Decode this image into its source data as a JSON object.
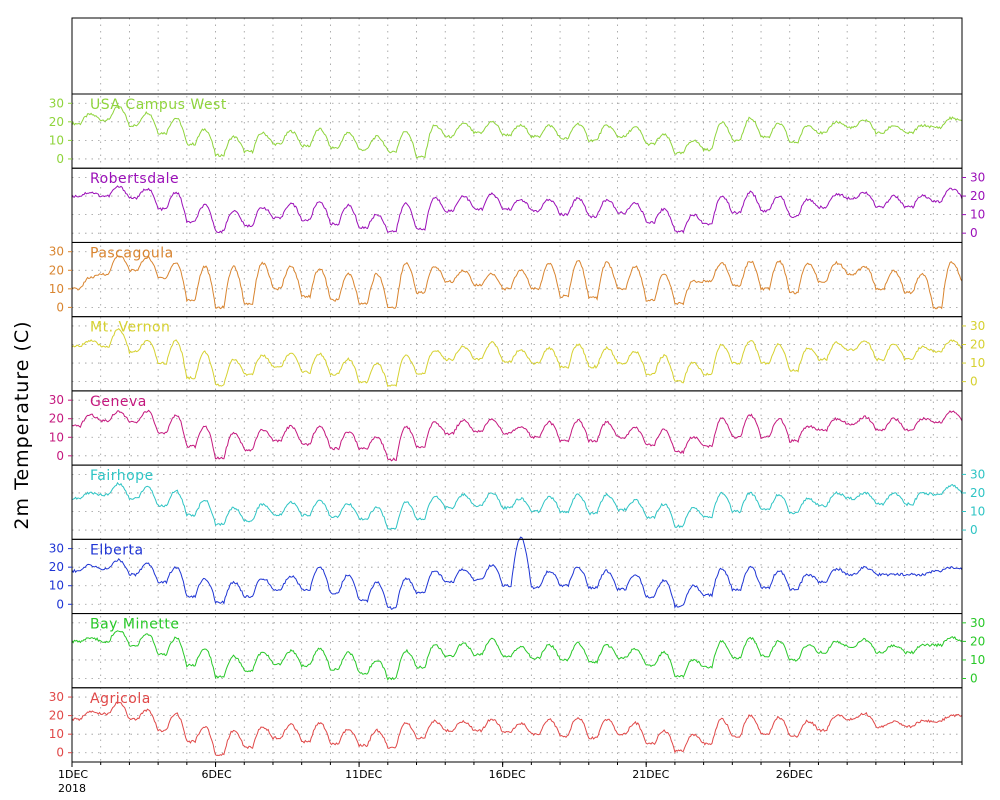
{
  "chart_data": {
    "type": "line",
    "ylabel": "2m Temperature (C)",
    "x_start_label": "1DEC",
    "x_year_label": "2018",
    "x_ticks": [
      {
        "day": 1,
        "label": "1DEC"
      },
      {
        "day": 6,
        "label": "6DEC"
      },
      {
        "day": 11,
        "label": "11DEC"
      },
      {
        "day": 16,
        "label": "16DEC"
      },
      {
        "day": 21,
        "label": "21DEC"
      },
      {
        "day": 26,
        "label": "26DEC"
      }
    ],
    "x_range_days": [
      1,
      32
    ],
    "y_ticks": [
      0,
      10,
      20,
      30
    ],
    "ylim": [
      -5,
      35
    ],
    "grid": true,
    "series": [
      {
        "name": "USA Campus West",
        "color": "#8fd43c",
        "axis_side": "left",
        "daily_max": [
          24,
          28,
          25,
          22,
          16,
          12,
          14,
          15,
          16,
          14,
          12,
          15,
          18,
          19,
          20,
          18,
          18,
          19,
          18,
          17,
          13,
          10,
          20,
          22,
          19,
          18,
          20,
          21,
          18,
          18,
          22,
          22
        ],
        "daily_min": [
          19,
          21,
          18,
          14,
          8,
          2,
          4,
          8,
          7,
          6,
          5,
          4,
          1,
          12,
          14,
          13,
          12,
          11,
          10,
          12,
          8,
          3,
          5,
          10,
          12,
          9,
          14,
          17,
          14,
          14,
          17,
          20
        ]
      },
      {
        "name": "Robertsdale",
        "color": "#9b10b8",
        "axis_side": "right",
        "daily_max": [
          22,
          25,
          24,
          22,
          15,
          12,
          14,
          16,
          17,
          15,
          10,
          16,
          19,
          20,
          21,
          18,
          18,
          19,
          18,
          16,
          13,
          10,
          20,
          22,
          20,
          18,
          21,
          22,
          20,
          20,
          24,
          22
        ],
        "daily_min": [
          20,
          20,
          19,
          13,
          6,
          1,
          4,
          8,
          7,
          5,
          3,
          1,
          2,
          12,
          13,
          13,
          12,
          10,
          9,
          11,
          6,
          1,
          5,
          11,
          12,
          9,
          14,
          19,
          14,
          14,
          17,
          19
        ]
      },
      {
        "name": "Pascagoula",
        "color": "#d98530",
        "axis_side": "left",
        "daily_max": [
          16,
          28,
          27,
          24,
          22,
          22,
          24,
          22,
          21,
          18,
          18,
          24,
          22,
          20,
          18,
          20,
          24,
          25,
          24,
          22,
          18,
          14,
          24,
          25,
          25,
          24,
          24,
          22,
          20,
          18,
          24,
          22
        ],
        "daily_min": [
          10,
          18,
          20,
          16,
          4,
          0,
          2,
          10,
          6,
          4,
          2,
          0,
          8,
          14,
          12,
          10,
          10,
          6,
          5,
          10,
          4,
          2,
          14,
          12,
          10,
          8,
          14,
          18,
          10,
          8,
          0,
          14
        ]
      },
      {
        "name": "Mt. Vernon",
        "color": "#d6d130",
        "axis_side": "right",
        "daily_max": [
          22,
          28,
          22,
          22,
          16,
          12,
          14,
          15,
          15,
          12,
          10,
          14,
          17,
          19,
          21,
          17,
          18,
          20,
          18,
          16,
          14,
          10,
          20,
          22,
          20,
          18,
          21,
          22,
          20,
          19,
          22,
          22
        ],
        "daily_min": [
          19,
          19,
          16,
          10,
          2,
          -2,
          4,
          8,
          5,
          4,
          0,
          -2,
          4,
          12,
          12,
          11,
          10,
          8,
          8,
          10,
          4,
          0,
          4,
          10,
          10,
          6,
          12,
          17,
          12,
          12,
          16,
          18
        ]
      },
      {
        "name": "Geneva",
        "color": "#c4187e",
        "axis_side": "left",
        "daily_max": [
          22,
          24,
          24,
          22,
          16,
          12,
          14,
          16,
          16,
          13,
          10,
          16,
          18,
          19,
          20,
          16,
          18,
          19,
          18,
          15,
          14,
          10,
          20,
          22,
          20,
          16,
          20,
          21,
          20,
          20,
          24,
          22
        ],
        "daily_min": [
          16,
          19,
          18,
          12,
          5,
          -1,
          3,
          8,
          6,
          4,
          4,
          -2,
          5,
          12,
          13,
          12,
          10,
          8,
          8,
          10,
          6,
          2,
          5,
          10,
          10,
          8,
          14,
          17,
          14,
          14,
          18,
          19
        ]
      },
      {
        "name": "Fairhope",
        "color": "#2ec4c4",
        "axis_side": "right",
        "daily_max": [
          20,
          25,
          23,
          21,
          16,
          12,
          14,
          15,
          16,
          14,
          12,
          15,
          18,
          19,
          20,
          17,
          18,
          19,
          19,
          16,
          14,
          12,
          20,
          20,
          19,
          17,
          20,
          20,
          20,
          20,
          24,
          22
        ],
        "daily_min": [
          17,
          19,
          17,
          13,
          8,
          3,
          5,
          8,
          8,
          7,
          6,
          1,
          6,
          12,
          13,
          12,
          10,
          10,
          9,
          11,
          7,
          2,
          7,
          10,
          11,
          9,
          13,
          17,
          14,
          14,
          19,
          20
        ]
      },
      {
        "name": "Elberta",
        "color": "#1f35d4",
        "axis_side": "left",
        "daily_max": [
          21,
          24,
          22,
          20,
          14,
          12,
          14,
          15,
          20,
          16,
          12,
          14,
          18,
          19,
          21,
          36,
          18,
          20,
          18,
          16,
          13,
          10,
          19,
          20,
          18,
          16,
          19,
          20,
          16,
          16,
          20,
          20
        ],
        "daily_min": [
          18,
          19,
          16,
          12,
          4,
          1,
          4,
          8,
          8,
          6,
          2,
          -2,
          6,
          12,
          13,
          10,
          9,
          10,
          9,
          8,
          4,
          -1,
          5,
          8,
          9,
          8,
          12,
          16,
          16,
          16,
          18,
          19
        ]
      },
      {
        "name": "Bay Minette",
        "color": "#28c828",
        "axis_side": "right",
        "daily_max": [
          22,
          26,
          24,
          22,
          16,
          12,
          14,
          15,
          16,
          14,
          10,
          15,
          18,
          19,
          21,
          17,
          18,
          19,
          18,
          16,
          14,
          10,
          20,
          22,
          20,
          18,
          20,
          21,
          18,
          18,
          22,
          22
        ],
        "daily_min": [
          20,
          20,
          18,
          13,
          7,
          1,
          4,
          8,
          7,
          5,
          3,
          0,
          6,
          12,
          13,
          12,
          11,
          10,
          9,
          11,
          7,
          1,
          6,
          11,
          12,
          10,
          14,
          17,
          14,
          14,
          18,
          20
        ]
      },
      {
        "name": "Agricola",
        "color": "#e04848",
        "axis_side": "left",
        "daily_max": [
          22,
          27,
          23,
          21,
          14,
          12,
          14,
          15,
          16,
          13,
          12,
          16,
          17,
          17,
          18,
          16,
          18,
          19,
          18,
          16,
          12,
          10,
          18,
          20,
          19,
          17,
          20,
          21,
          17,
          17,
          20,
          21
        ],
        "daily_min": [
          18,
          21,
          18,
          12,
          6,
          -1,
          3,
          8,
          6,
          5,
          4,
          3,
          8,
          12,
          12,
          11,
          10,
          9,
          8,
          10,
          5,
          1,
          5,
          9,
          10,
          9,
          12,
          18,
          14,
          14,
          17,
          20
        ]
      }
    ]
  }
}
